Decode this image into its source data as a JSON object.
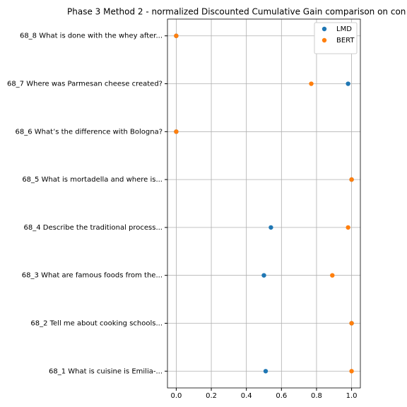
{
  "chart_data": {
    "type": "scatter",
    "title": "Phase 3 Method 2 - normalized Discounted Cumulative Gain comparison on con",
    "categories": [
      "68_1 What is cuisine is Emilia-...",
      "68_2 Tell me about cooking schools...",
      "68_3 What are famous foods from the...",
      "68_4 Describe the traditional process...",
      "68_5 What is mortadella and where is...",
      "68_6 What’s the difference with Bologna?",
      "68_7 Where was Parmesan cheese created?",
      "68_8 What is done with the whey after..."
    ],
    "series": [
      {
        "name": "LMD",
        "color": "#1f77b4",
        "values": [
          0.51,
          1.0,
          0.5,
          0.54,
          1.0,
          0.0,
          0.98,
          0.0
        ]
      },
      {
        "name": "BERT",
        "color": "#ff7f0e",
        "values": [
          1.0,
          1.0,
          0.89,
          0.98,
          1.0,
          0.0,
          0.77,
          0.0
        ]
      }
    ],
    "xlim": [
      -0.05,
      1.05
    ],
    "xticks": [
      {
        "value": 0,
        "label": "0.0"
      },
      {
        "value": 0.2,
        "label": "0.2"
      },
      {
        "value": 0.4,
        "label": "0.4"
      },
      {
        "value": 0.6,
        "label": "0.6"
      },
      {
        "value": 0.8,
        "label": "0.8"
      },
      {
        "value": 1,
        "label": "1.0"
      }
    ],
    "grid": true,
    "legend": "upper right"
  }
}
